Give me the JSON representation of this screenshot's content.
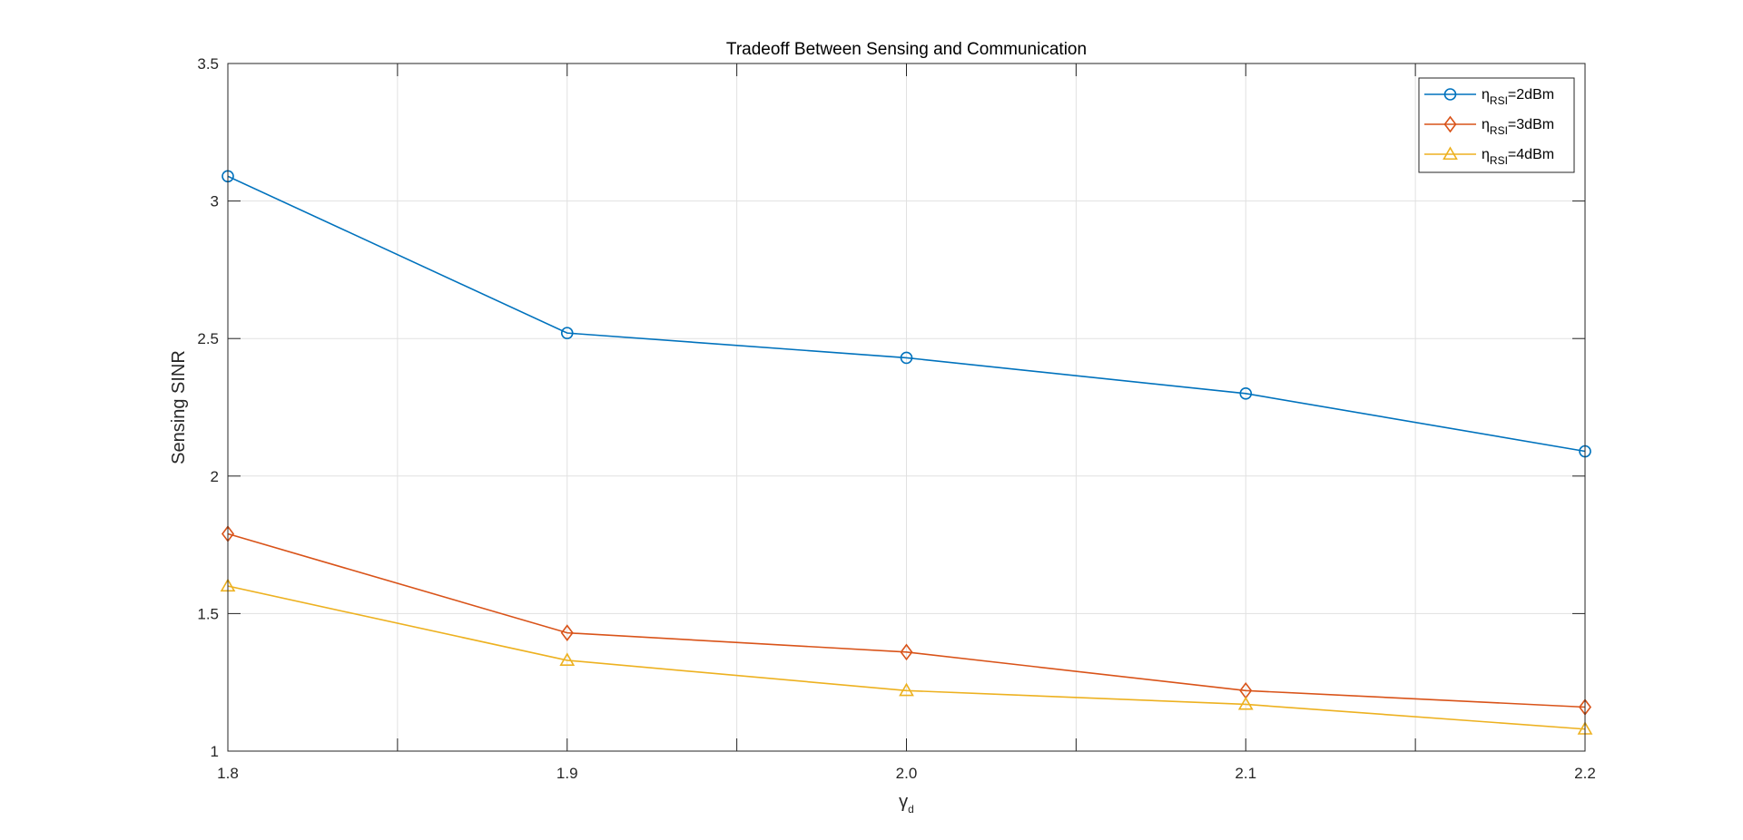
{
  "chart_data": {
    "type": "line",
    "title": "Tradeoff Between Sensing and Communication",
    "xlabel": "γd",
    "xlabel_main": "γ",
    "xlabel_sub": "d",
    "ylabel": "Sensing SINR",
    "xlim": [
      1.8,
      2.2
    ],
    "ylim": [
      1,
      3.5
    ],
    "x": [
      1.8,
      1.9,
      2.0,
      2.1,
      2.2
    ],
    "x_tick_values": [
      1.8,
      1.9,
      2.0,
      2.1,
      2.2
    ],
    "x_tick_labels": [
      "1.8",
      "1.9",
      "2.0",
      "2.1",
      "2.2"
    ],
    "x_minor_ticks": [
      1.85,
      1.95,
      2.05,
      2.15
    ],
    "y_tick_values": [
      1,
      1.5,
      2,
      2.5,
      3,
      3.5
    ],
    "y_tick_labels": [
      "1",
      "1.5",
      "2",
      "2.5",
      "3",
      "3.5"
    ],
    "grid": true,
    "legend_position": "top-right",
    "series": [
      {
        "name": "ηRSI=2dBm",
        "legend_main": "η",
        "legend_sub": "RSI",
        "legend_rest": "=2dBm",
        "color": "#0072BD",
        "marker": "circle",
        "values": [
          3.09,
          2.52,
          2.43,
          2.3,
          2.09
        ]
      },
      {
        "name": "ηRSI=3dBm",
        "legend_main": "η",
        "legend_sub": "RSI",
        "legend_rest": "=3dBm",
        "color": "#D95319",
        "marker": "diamond",
        "values": [
          1.79,
          1.43,
          1.36,
          1.22,
          1.16
        ]
      },
      {
        "name": "ηRSI=4dBm",
        "legend_main": "η",
        "legend_sub": "RSI",
        "legend_rest": "=4dBm",
        "color": "#EDB120",
        "marker": "triangle",
        "values": [
          1.6,
          1.33,
          1.22,
          1.17,
          1.08
        ]
      }
    ]
  }
}
